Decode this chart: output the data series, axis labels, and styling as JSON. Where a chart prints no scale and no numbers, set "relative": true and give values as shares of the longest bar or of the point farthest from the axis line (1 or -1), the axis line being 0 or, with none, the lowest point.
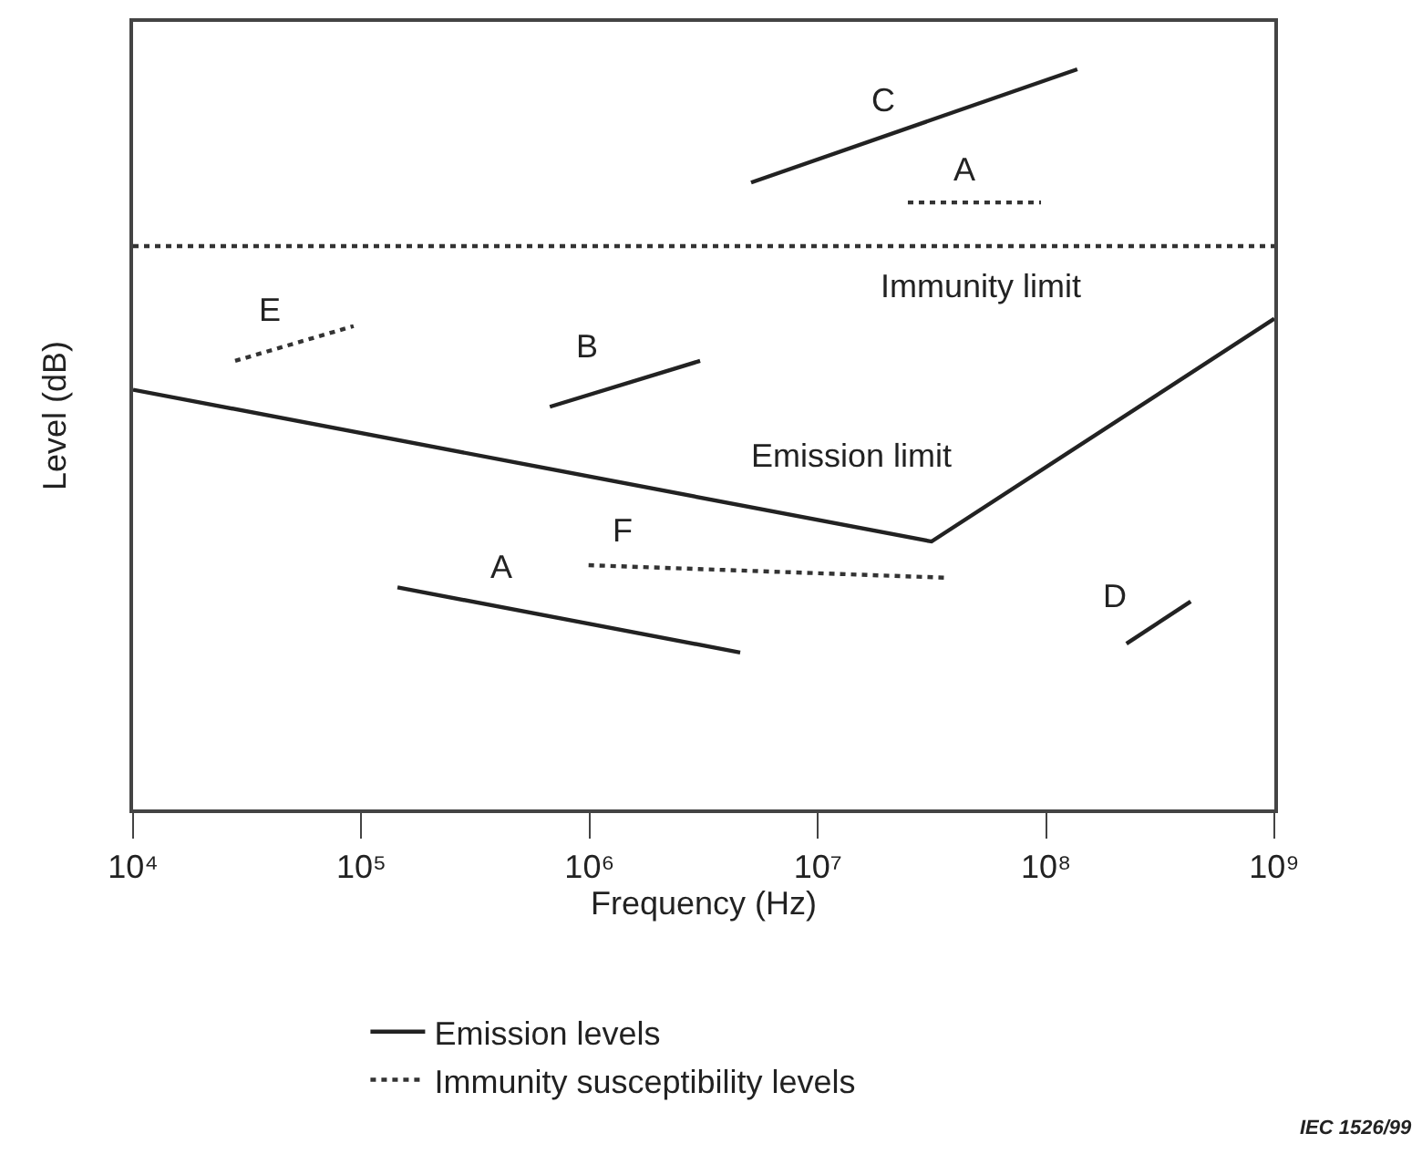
{
  "chart_data": {
    "type": "line",
    "relative": true,
    "xlabel": "Frequency (Hz)",
    "ylabel": "Level (dB)",
    "log": "x",
    "xlim": [
      10000,
      1000000000
    ],
    "xticks": [
      {
        "value": 10000,
        "label": "10⁴"
      },
      {
        "value": 100000,
        "label": "10⁵"
      },
      {
        "value": 1000000,
        "label": "10⁶"
      },
      {
        "value": 10000000,
        "label": "10⁷"
      },
      {
        "value": 100000000,
        "label": "10⁸"
      },
      {
        "value": 1000000000,
        "label": "10⁹"
      }
    ],
    "legend": "bottom",
    "series": [
      {
        "color": "#222222",
        "line_style": "solid",
        "x": [
          10000,
          31500000,
          1000000000
        ],
        "values": [
          0.567,
          0.362,
          0.663
        ]
      },
      {
        "color": "#333333",
        "line_style": "dotted",
        "x": [
          10000,
          1000000000
        ],
        "values": [
          0.761,
          0.761
        ]
      },
      {
        "name": "Emission levels",
        "color": "#222222",
        "line_style": "solid",
        "x": [
          5100000,
          137000000
        ],
        "values": [
          0.847,
          1.0
        ]
      },
      {
        "color": "#222222",
        "line_style": "solid",
        "x": [
          670000,
          3050000
        ],
        "values": [
          0.544,
          0.606
        ]
      },
      {
        "color": "#222222",
        "line_style": "solid",
        "x": [
          144000,
          4570000
        ],
        "values": [
          0.3,
          0.212
        ]
      },
      {
        "color": "#222222",
        "line_style": "solid",
        "x": [
          225000000,
          430000000
        ],
        "values": [
          0.224,
          0.281
        ]
      },
      {
        "name": "Immunity susceptibility levels",
        "color": "#333333",
        "line_style": "dotted",
        "x": [
          24800000,
          95000000
        ],
        "values": [
          0.82,
          0.82
        ]
      },
      {
        "color": "#333333",
        "line_style": "dotted",
        "x": [
          28000,
          92500
        ],
        "values": [
          0.606,
          0.653
        ]
      },
      {
        "color": "#333333",
        "line_style": "dotted",
        "x": [
          990000,
          37000000
        ],
        "values": [
          0.33,
          0.313
        ]
      }
    ],
    "annotations": [
      {
        "text": "C",
        "x": 19500000,
        "y": 0.909
      },
      {
        "text": "A",
        "x": 44000000,
        "y": 0.82
      },
      {
        "text": "Immunity limit",
        "x": 52000000,
        "y": 0.761
      },
      {
        "text": "E",
        "x": 40000,
        "y": 0.62
      },
      {
        "text": "B",
        "x": 980000,
        "y": 0.559
      },
      {
        "text": "Emission limit",
        "x": 14000000,
        "y": 0.383
      },
      {
        "text": "F",
        "x": 1400000,
        "y": 0.328
      },
      {
        "text": "A",
        "x": 410000,
        "y": 0.273
      },
      {
        "text": "D",
        "x": 225000000,
        "y": 0.224
      },
      "IEC 1526/99"
    ]
  }
}
